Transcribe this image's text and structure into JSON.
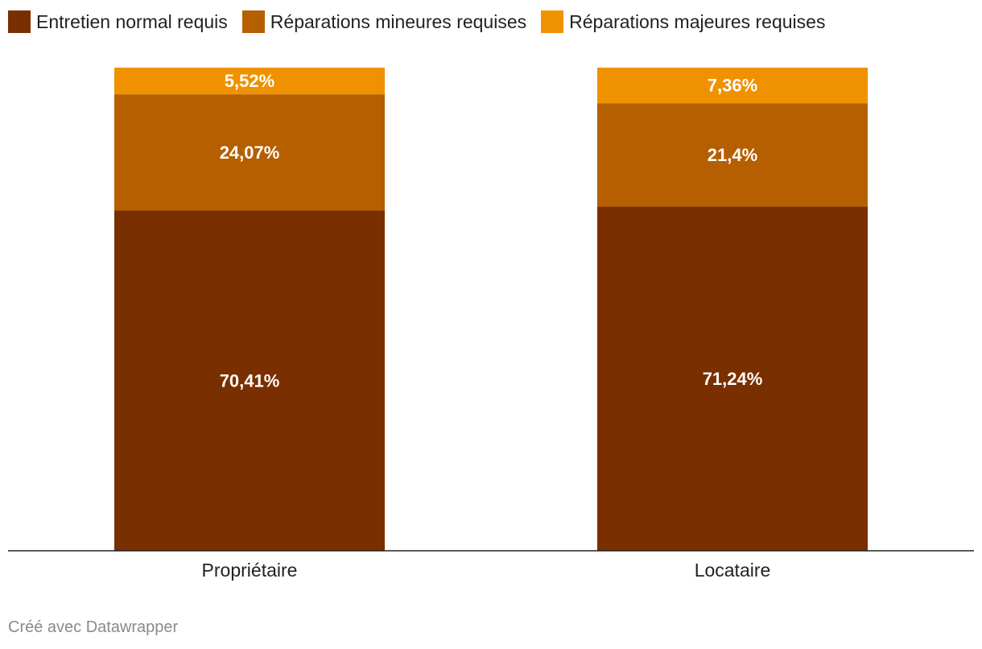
{
  "chart_data": {
    "type": "bar",
    "stacked": true,
    "orientation": "vertical",
    "categories": [
      "Propriétaire",
      "Locataire"
    ],
    "series": [
      {
        "name": "Entretien normal requis",
        "color": "#7a2f00",
        "values": [
          70.41,
          71.24
        ],
        "labels": [
          "70,41%",
          "71,24%"
        ]
      },
      {
        "name": "Réparations mineures requises",
        "color": "#b55f00",
        "values": [
          24.07,
          21.4
        ],
        "labels": [
          "24,07%",
          "21,4%"
        ]
      },
      {
        "name": "Réparations majeures requises",
        "color": "#f09100",
        "values": [
          5.52,
          7.36
        ],
        "labels": [
          "5,52%",
          "7,36%"
        ]
      }
    ],
    "ylim": [
      0,
      100
    ],
    "legend_position": "top-left",
    "grid": false
  },
  "legend": {
    "items": [
      {
        "label": "Entretien normal requis",
        "color": "#7a2f00"
      },
      {
        "label": "Réparations mineures requises",
        "color": "#b55f00"
      },
      {
        "label": "Réparations majeures requises",
        "color": "#f09100"
      }
    ]
  },
  "credit": "Créé avec Datawrapper"
}
